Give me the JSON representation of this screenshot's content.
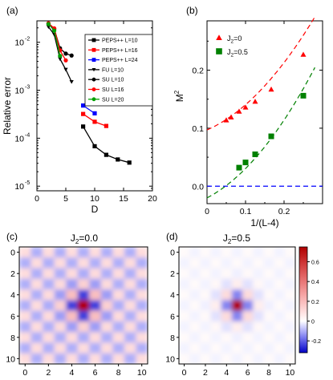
{
  "chart_data": [
    {
      "panel": "(a)",
      "type": "line",
      "xlabel": "D",
      "ylabel": "Relative error",
      "xlim": [
        0,
        20
      ],
      "ylim": [
        8e-06,
        0.028
      ],
      "yscale": "log",
      "xticks": [
        0,
        5,
        10,
        15,
        20
      ],
      "xtick_labels": [
        "0",
        "5",
        "10",
        "15",
        "20"
      ],
      "yticks": [
        1e-05,
        0.0001,
        0.001,
        0.01
      ],
      "ytick_labels": [
        "10",
        "10",
        "10",
        "10"
      ],
      "ytick_exponents": [
        "-5",
        "-4",
        "-3",
        "-2"
      ],
      "legend_position": "top-right",
      "series": [
        {
          "name": "PEPS++ L=10",
          "color": "#000000",
          "marker": "square",
          "x": [
            8,
            10,
            12,
            14,
            16
          ],
          "y": [
            0.000175,
            6.8e-05,
            4.5e-05,
            3.6e-05,
            3.1e-05
          ]
        },
        {
          "name": "PEPS++ L=16",
          "color": "#ff0000",
          "marker": "square",
          "x": [
            8,
            10,
            12
          ],
          "y": [
            0.00032,
            0.00022,
            0.00018
          ]
        },
        {
          "name": "PEPS++ L=24",
          "color": "#0000ff",
          "marker": "square",
          "x": [
            8,
            10
          ],
          "y": [
            0.00048,
            0.00033
          ]
        },
        {
          "name": "FU L=10",
          "color": "#000000",
          "marker": "triangle-down",
          "x": [
            2,
            3,
            4,
            5,
            6
          ],
          "y": [
            0.021,
            0.0145,
            0.0045,
            0.0027,
            0.0015
          ]
        },
        {
          "name": "SU L=10",
          "color": "#000000",
          "marker": "circle",
          "x": [
            2,
            3,
            4,
            5,
            6
          ],
          "y": [
            0.024,
            0.019,
            0.0075,
            0.0058,
            0.0053
          ]
        },
        {
          "name": "SU L=16",
          "color": "#ff0000",
          "marker": "circle",
          "x": [
            2,
            3,
            4,
            5
          ],
          "y": [
            0.025,
            0.0195,
            0.0068,
            0.0042
          ]
        },
        {
          "name": "SU L=20",
          "color": "#00a000",
          "marker": "circle",
          "x": [
            2,
            3,
            4
          ],
          "y": [
            0.024,
            0.0175,
            0.0052
          ]
        }
      ]
    },
    {
      "panel": "(b)",
      "type": "scatter",
      "xlabel": "1/(L-4)",
      "ylabel": "M",
      "ylabel_superscript": "2",
      "xlim": [
        0,
        0.3
      ],
      "ylim": [
        -0.03,
        0.285
      ],
      "xticks": [
        0,
        0.1,
        0.2
      ],
      "xtick_labels": [
        "0",
        "0.1",
        "0.2"
      ],
      "yticks": [
        0,
        0.1,
        0.2
      ],
      "ytick_labels": [
        "0.0",
        "0.1",
        "0.2"
      ],
      "legend_position": "top-left",
      "series": [
        {
          "name_main": "J",
          "name_sub": "2",
          "name_value": "=0",
          "color": "#ff0000",
          "marker": "triangle-up",
          "x": [
            0.05,
            0.0625,
            0.0833,
            0.1,
            0.125,
            0.1667,
            0.25
          ],
          "y": [
            0.114,
            0.119,
            0.129,
            0.136,
            0.146,
            0.167,
            0.227
          ],
          "fit": {
            "style": "dashed",
            "a": 0.097,
            "b": 0.29,
            "c": 1.45
          }
        },
        {
          "name_main": "J",
          "name_sub": "2",
          "name_value": "=0.5",
          "color": "#008000",
          "marker": "square",
          "x": [
            0.0833,
            0.1,
            0.125,
            0.1667,
            0.25
          ],
          "y": [
            0.032,
            0.041,
            0.055,
            0.086,
            0.156
          ],
          "fit": {
            "style": "dashed",
            "a": -0.02,
            "b": 0.34,
            "c": 1.65
          }
        }
      ],
      "reference_line": {
        "y": 0,
        "color": "#0000ff",
        "style": "dashed"
      }
    },
    {
      "panel": "(c)",
      "type": "heatmap",
      "title_main": "J",
      "title_sub": "2",
      "title_value": "=0.0",
      "size": 11,
      "center": [
        5,
        5
      ],
      "xticks": [
        "0",
        "2",
        "4",
        "6",
        "8",
        "10"
      ],
      "yticks": [
        "0",
        "2",
        "4",
        "6",
        "8",
        "10"
      ],
      "long_range_amplitude": 0.1,
      "center_value": 0.75
    },
    {
      "panel": "(d)",
      "type": "heatmap",
      "title_main": "J",
      "title_sub": "2",
      "title_value": "=0.5",
      "size": 11,
      "center": [
        5,
        5
      ],
      "xticks": [
        "0",
        "2",
        "4",
        "6",
        "8",
        "10"
      ],
      "yticks": [
        "0",
        "2",
        "4",
        "6",
        "8",
        "10"
      ],
      "long_range_amplitude": 0.015,
      "center_value": 0.75,
      "colorbar": {
        "ticks": [
          0.6,
          0.4,
          0.2,
          0,
          -0.2
        ],
        "tick_labels": [
          "0.6",
          "0.4",
          "0.2",
          "0",
          "-0.2"
        ],
        "vmin": -0.32,
        "vmax": 0.75
      }
    }
  ]
}
